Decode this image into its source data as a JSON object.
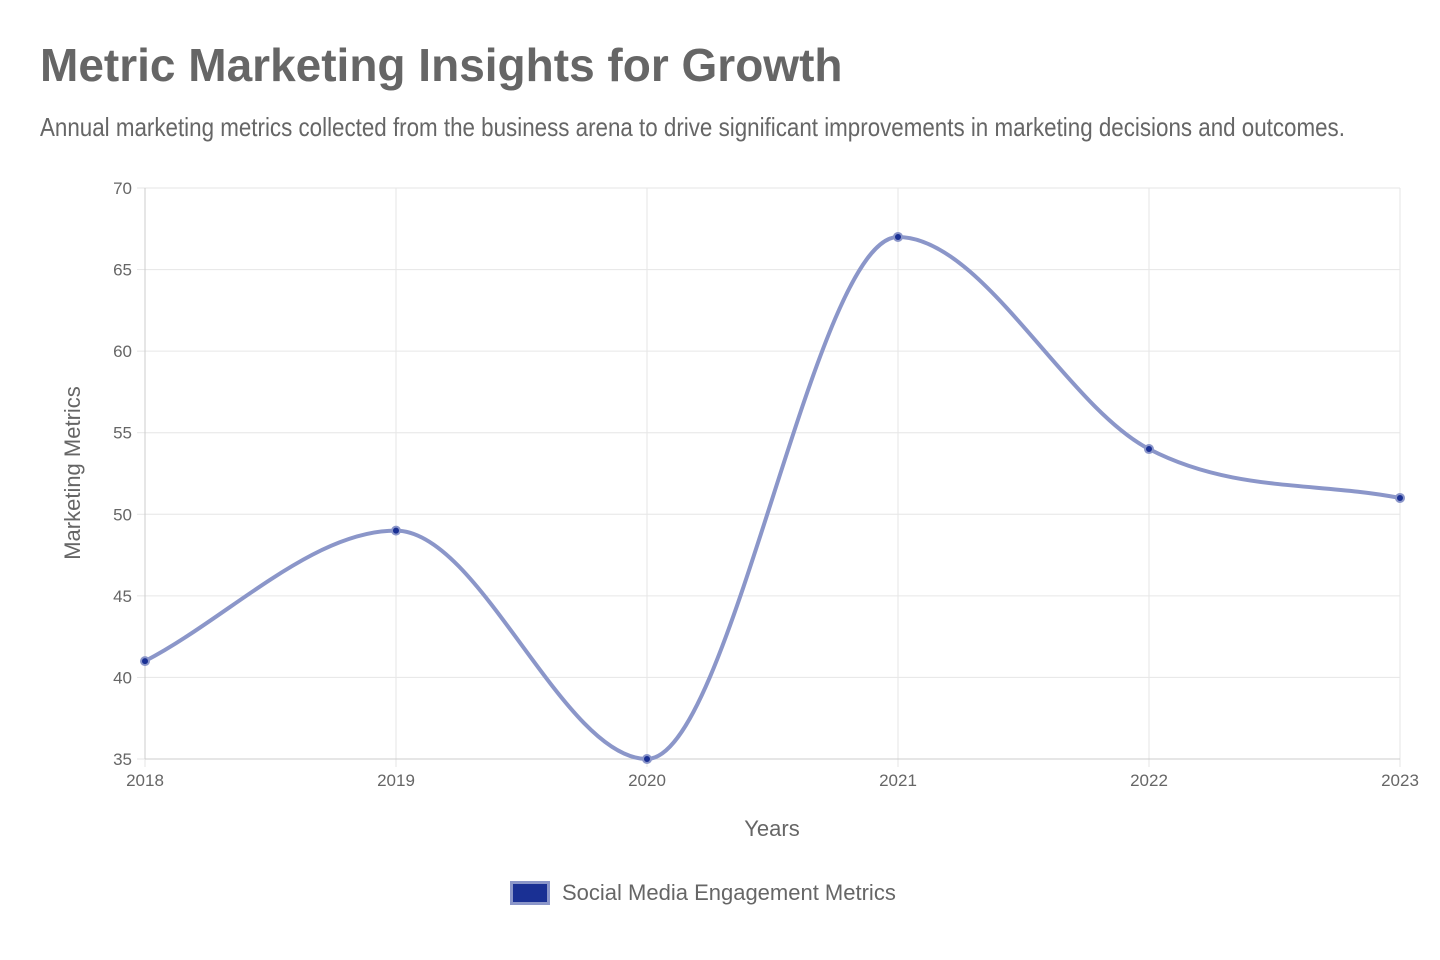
{
  "title": "Metric Marketing Insights for Growth",
  "subtitle": "Annual marketing metrics collected from the business arena to drive significant improvements in marketing decisions and outcomes.",
  "colors": {
    "line": "#8b96c9",
    "point": "#1a3094",
    "grid": "#e6e6e6",
    "text": "#666666"
  },
  "chart_data": {
    "type": "line",
    "x": [
      "2018",
      "2019",
      "2020",
      "2021",
      "2022",
      "2023"
    ],
    "series": [
      {
        "name": "Social Media Engagement Metrics",
        "values": [
          41,
          49,
          35,
          67,
          54,
          51
        ]
      }
    ],
    "xlabel": "Years",
    "ylabel": "Marketing Metrics",
    "ylim": [
      35,
      70
    ],
    "yticks": [
      "35",
      "40",
      "45",
      "50",
      "55",
      "60",
      "65",
      "70"
    ],
    "grid": true,
    "legend_position": "bottom",
    "smooth": true
  }
}
